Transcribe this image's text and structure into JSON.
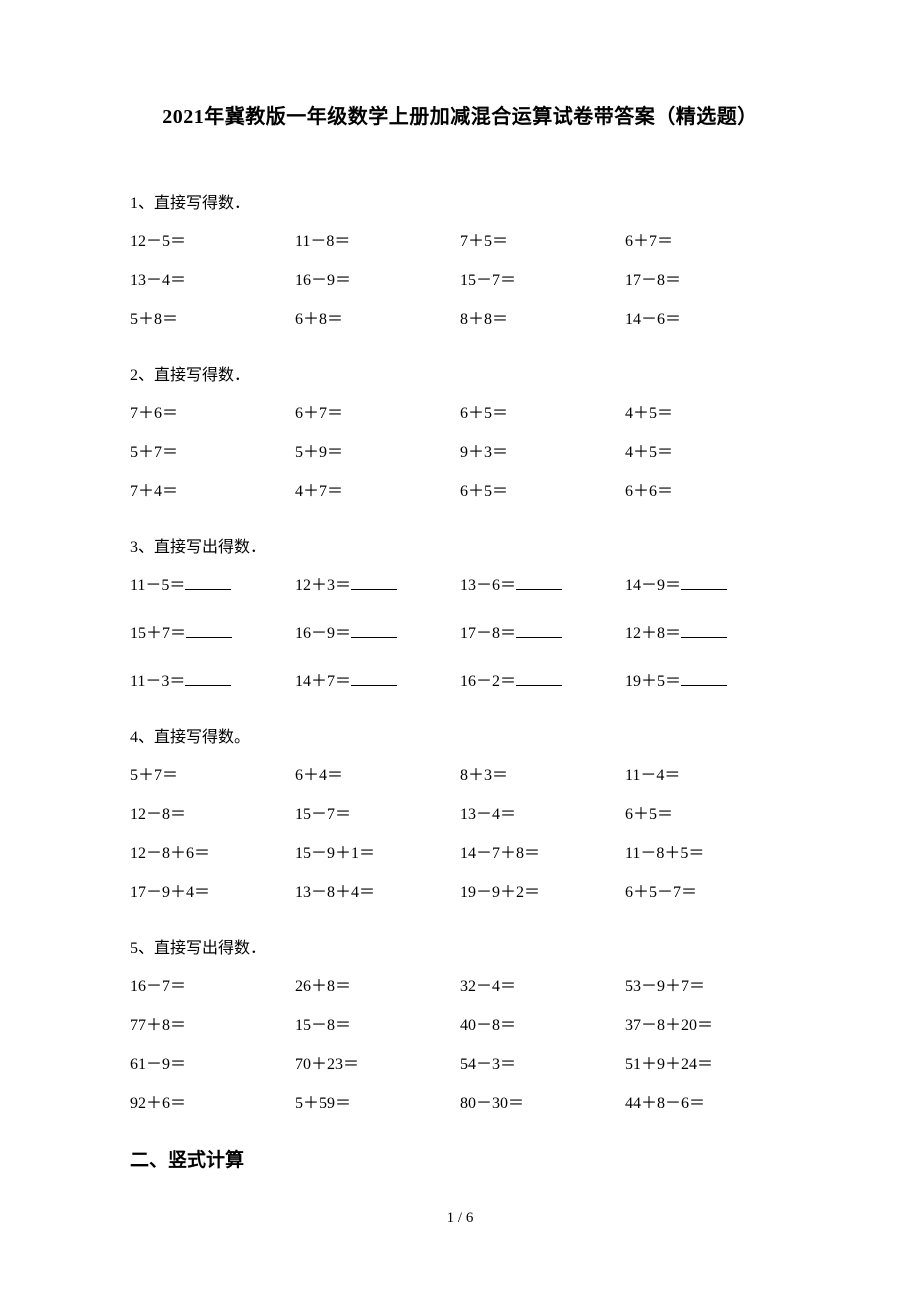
{
  "title": "2021年冀教版一年级数学上册加减混合运算试卷带答案（精选题）",
  "questions": [
    {
      "label": "1、直接写得数．",
      "hasBlank": false,
      "rows": [
        [
          "12－5＝",
          "11－8＝",
          "7＋5＝",
          "6＋7＝"
        ],
        [
          "13－4＝",
          "16－9＝",
          "15－7＝",
          "17－8＝"
        ],
        [
          "5＋8＝",
          "6＋8＝",
          "8＋8＝",
          "14－6＝"
        ]
      ]
    },
    {
      "label": "2、直接写得数．",
      "hasBlank": false,
      "rows": [
        [
          "7＋6＝",
          "6＋7＝",
          "6＋5＝",
          "4＋5＝"
        ],
        [
          "5＋7＝",
          "5＋9＝",
          "9＋3＝",
          "4＋5＝"
        ],
        [
          "7＋4＝",
          "4＋7＝",
          "6＋5＝",
          "6＋6＝"
        ]
      ]
    },
    {
      "label": "3、直接写出得数．",
      "hasBlank": true,
      "rows": [
        [
          "11－5＝",
          "12＋3＝",
          "13－6＝",
          "14－9＝"
        ],
        [
          "15＋7＝",
          "16－9＝",
          "17－8＝",
          "12＋8＝"
        ],
        [
          "11－3＝",
          "14＋7＝",
          "16－2＝",
          "19＋5＝"
        ]
      ]
    },
    {
      "label": "4、直接写得数。",
      "hasBlank": false,
      "rows": [
        [
          "5＋7＝",
          "6＋4＝",
          "8＋3＝",
          "11－4＝"
        ],
        [
          "12－8＝",
          "15－7＝",
          "13－4＝",
          "6＋5＝"
        ],
        [
          "12－8＋6＝",
          "15－9＋1＝",
          "14－7＋8＝",
          "11－8＋5＝"
        ],
        [
          "17－9＋4＝",
          "13－8＋4＝",
          "19－9＋2＝",
          "6＋5－7＝"
        ]
      ]
    },
    {
      "label": "5、直接写出得数．",
      "hasBlank": false,
      "rows": [
        [
          "16－7＝",
          "26＋8＝",
          "32－4＝",
          "53－9＋7＝"
        ],
        [
          "77＋8＝",
          "15－8＝",
          "40－8＝",
          "37－8＋20＝"
        ],
        [
          "61－9＝",
          "70＋23＝",
          "54－3＝",
          "51＋9＋24＝"
        ],
        [
          "92＋6＝",
          "5＋59＝",
          "80－30＝",
          "44＋8－6＝"
        ]
      ]
    }
  ],
  "sectionHeading": "二、竖式计算",
  "pageNumber": "1 / 6"
}
